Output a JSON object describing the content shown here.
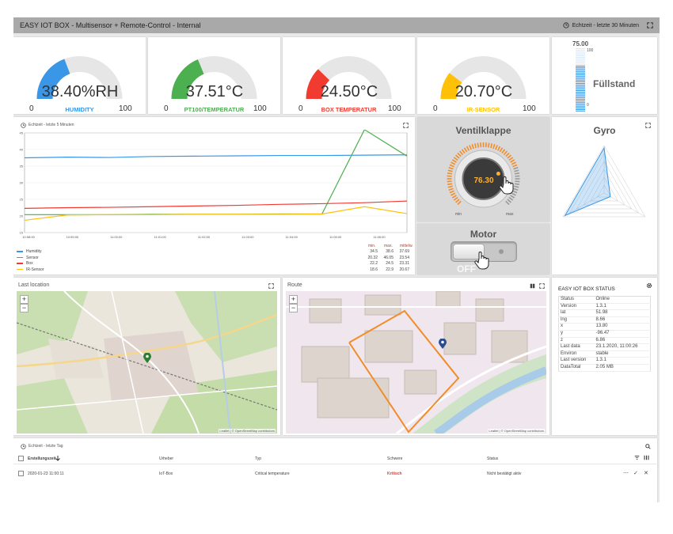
{
  "titlebar": {
    "title": "EASY IOT BOX - Multisensor + Remote-Control - Internal",
    "time_range": "Echtzeit - letzte 30 Minuten"
  },
  "gauges": [
    {
      "value": "38.40%RH",
      "label": "HUMIDITY",
      "min": "0",
      "max": "100",
      "color": "#3a97e8",
      "fraction": 0.384
    },
    {
      "value": "37.51°C",
      "label": "PT100/TEMPERATUR",
      "min": "0",
      "max": "100",
      "color": "#4caf50",
      "fraction": 0.3751
    },
    {
      "value": "24.50°C",
      "label": "BOX TEMPERATUR",
      "min": "0",
      "max": "100",
      "color": "#f23b30",
      "fraction": 0.245
    },
    {
      "value": "20.70°C",
      "label": "IR-SENSOR",
      "min": "0",
      "max": "100",
      "color": "#ffc107",
      "fraction": 0.207
    }
  ],
  "fuellstand": {
    "title": "Füllstand",
    "value": "75.00",
    "scale_max": "100",
    "scale_min": "0",
    "fraction": 0.75
  },
  "line_chart": {
    "header": "Echtzeit - letzte 5 Minuten",
    "y_ticks": [
      "45",
      "40",
      "35",
      "30",
      "25",
      "20",
      "15"
    ],
    "x_ticks": [
      "10:58:00",
      "10:59:00",
      "11:00:00",
      "11:01:00",
      "11:02:00",
      "11:03:00",
      "11:04:00",
      "11:05:00",
      "11:06:00"
    ],
    "legend": [
      {
        "name": "Humidity",
        "color": "#3a97e8",
        "min": "34.5",
        "max": "38.6",
        "mittelw": "37.69"
      },
      {
        "name": "Sensor",
        "color": "#4caf50",
        "min": "20.32",
        "max": "46.05",
        "mittelw": "23.54"
      },
      {
        "name": "Box",
        "color": "#f23b30",
        "min": "22.2",
        "max": "24.5",
        "mittelw": "23.31"
      },
      {
        "name": "IR-Sensor",
        "color": "#ffc107",
        "min": "18.6",
        "max": "22.9",
        "mittelw": "20.67"
      }
    ],
    "stat_headers": {
      "min": "min.",
      "max": "max.",
      "mittelw": "mittelw."
    }
  },
  "chart_data": {
    "type": "line",
    "x": [
      "10:58:00",
      "10:59:00",
      "11:00:00",
      "11:01:00",
      "11:02:00",
      "11:03:00",
      "11:04:00",
      "11:05:00",
      "11:06:00",
      "11:06:30"
    ],
    "ylim": [
      15,
      45
    ],
    "series": [
      {
        "name": "Humidity",
        "values": [
          37.5,
          37.7,
          37.6,
          37.9,
          38.0,
          38.1,
          38.2,
          38.2,
          38.3,
          38.4
        ]
      },
      {
        "name": "Sensor",
        "values": [
          20.4,
          20.4,
          20.4,
          20.5,
          20.5,
          20.5,
          20.6,
          20.6,
          46.0,
          38.0
        ]
      },
      {
        "name": "Box",
        "values": [
          22.3,
          22.5,
          22.6,
          22.8,
          23.0,
          23.2,
          23.5,
          23.7,
          24.0,
          24.5
        ]
      },
      {
        "name": "IR-Sensor",
        "values": [
          18.7,
          20.3,
          20.4,
          20.4,
          20.5,
          20.5,
          20.5,
          20.6,
          22.8,
          20.7
        ]
      }
    ],
    "xlabel": "",
    "ylabel": "",
    "title": ""
  },
  "ventilklappe": {
    "title": "Ventilklappe",
    "value": "76.30",
    "min": "min",
    "max": "max",
    "fraction": 0.763
  },
  "motor": {
    "title": "Motor",
    "state": "OFF"
  },
  "gyro": {
    "title": "Gyro"
  },
  "last_location": {
    "title": "Last location",
    "zoom_in": "+",
    "zoom_out": "−",
    "attribution": "Leaflet | © OpenStreetMap contributors"
  },
  "route": {
    "title": "Route",
    "zoom_in": "+",
    "zoom_out": "−",
    "attribution": "Leaflet | © OpenStreetMap contributors"
  },
  "status": {
    "title": "EASY IOT BOX STATUS",
    "rows": [
      {
        "k": "Status",
        "v": "Online"
      },
      {
        "k": "Version",
        "v": "1.3.1"
      },
      {
        "k": "lat",
        "v": "51.98"
      },
      {
        "k": "lng",
        "v": "8.66"
      },
      {
        "k": "x",
        "v": "13.80"
      },
      {
        "k": "y",
        "v": "-96.47"
      },
      {
        "k": "z",
        "v": "6.86"
      },
      {
        "k": "Last data",
        "v": "23.1.2020, 11:00:26"
      },
      {
        "k": "Environ",
        "v": "stable"
      },
      {
        "k": "Last version",
        "v": "1.3.1"
      },
      {
        "k": "DataTotal",
        "v": "2.05 MB"
      }
    ]
  },
  "alerts": {
    "header": "Echtzeit - letzte Tag",
    "columns": {
      "created": "Erstellungszeit",
      "source": "Urheber",
      "type": "Typ",
      "severity": "Schwere",
      "status": "Status"
    },
    "rows": [
      {
        "created": "2020-01-23 11:00:11",
        "source": "IoT-Box",
        "type": "Critical temperature",
        "severity": "Kritisch",
        "status": "Nicht bestätigt aktiv"
      }
    ]
  },
  "colors": {
    "titlebar": "#a9a9a9",
    "accent_blue": "#3a97e8",
    "critical": "#e53935"
  }
}
